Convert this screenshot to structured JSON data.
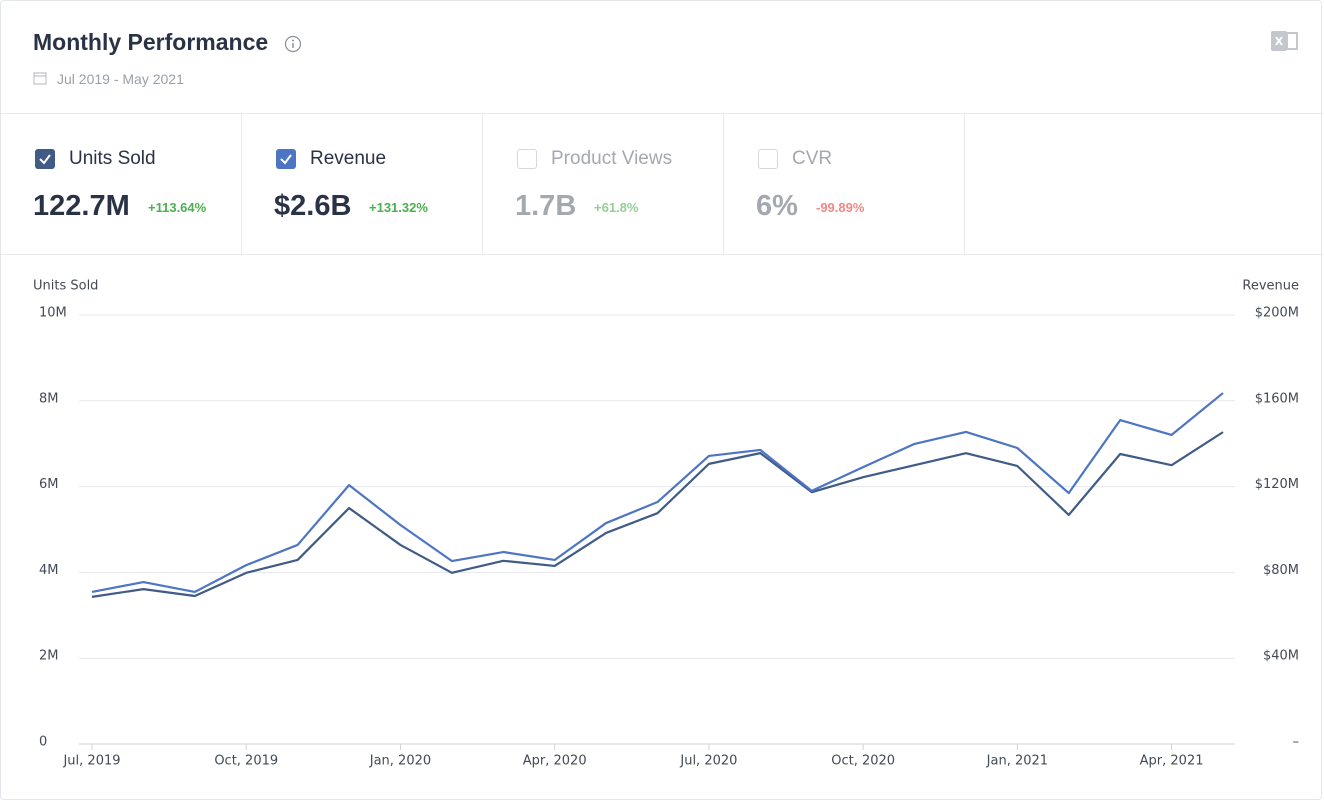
{
  "header": {
    "title": "Monthly Performance",
    "date_range": "Jul 2019 - May 2021"
  },
  "metrics": [
    {
      "label": "Units Sold",
      "checked": true,
      "value": "122.7M",
      "change": "+113.64%",
      "change_color": "#4caf50"
    },
    {
      "label": "Revenue",
      "checked": true,
      "value": "$2.6B",
      "change": "+131.32%",
      "change_color": "#4caf50"
    },
    {
      "label": "Product Views",
      "checked": false,
      "value": "1.7B",
      "change": "+61.8%",
      "change_color": "#4caf50"
    },
    {
      "label": "CVR",
      "checked": false,
      "value": "6%",
      "change": "-99.89%",
      "change_color": "#e53935"
    }
  ],
  "chart_data": {
    "type": "line",
    "y_label": "Units Sold",
    "y2_label": "Revenue",
    "categories": [
      "Jul, 2019",
      null,
      null,
      "Oct, 2019",
      null,
      null,
      "Jan, 2020",
      null,
      null,
      "Apr, 2020",
      null,
      null,
      "Jul, 2020",
      null,
      null,
      "Oct, 2020",
      null,
      null,
      "Jan, 2021",
      null,
      null,
      "Apr, 2021",
      null
    ],
    "series": [
      {
        "name": "Units Sold",
        "color": "#3f5b86",
        "values": [
          3.43,
          3.61,
          3.45,
          3.99,
          4.29,
          5.5,
          4.64,
          3.99,
          4.27,
          4.15,
          4.92,
          5.38,
          6.53,
          6.78,
          5.87,
          6.22,
          6.5,
          6.78,
          6.48,
          5.34,
          6.76,
          6.5,
          7.27
        ]
      },
      {
        "name": "Revenue",
        "color": "#4d75c4",
        "axis": "y2",
        "values": [
          70.9,
          75.5,
          70.9,
          83.4,
          92.8,
          120.7,
          102.1,
          85.3,
          89.5,
          85.8,
          103.0,
          112.8,
          134.3,
          137.1,
          118.0,
          129.1,
          139.9,
          145.5,
          138.0,
          117.0,
          151.0,
          144.1,
          163.6
        ]
      }
    ],
    "ylim": [
      0,
      10
    ],
    "yticks": [
      0,
      {
        "value": 2,
        "label": "2M"
      },
      {
        "value": 4,
        "label": "4M"
      },
      {
        "value": 6,
        "label": "6M"
      },
      {
        "value": 8,
        "label": "8M"
      },
      {
        "value": 10,
        "label": "10M"
      }
    ],
    "y2lim": [
      0,
      200
    ],
    "y2ticks": [
      {
        "value": 0,
        "label": "–"
      },
      {
        "value": 40,
        "label": "$40M"
      },
      {
        "value": 80,
        "label": "$80M"
      },
      {
        "value": 120,
        "label": "$120M"
      },
      {
        "value": 160,
        "label": "$160M"
      },
      {
        "value": 200,
        "label": "$200M"
      }
    ],
    "grid": true
  }
}
